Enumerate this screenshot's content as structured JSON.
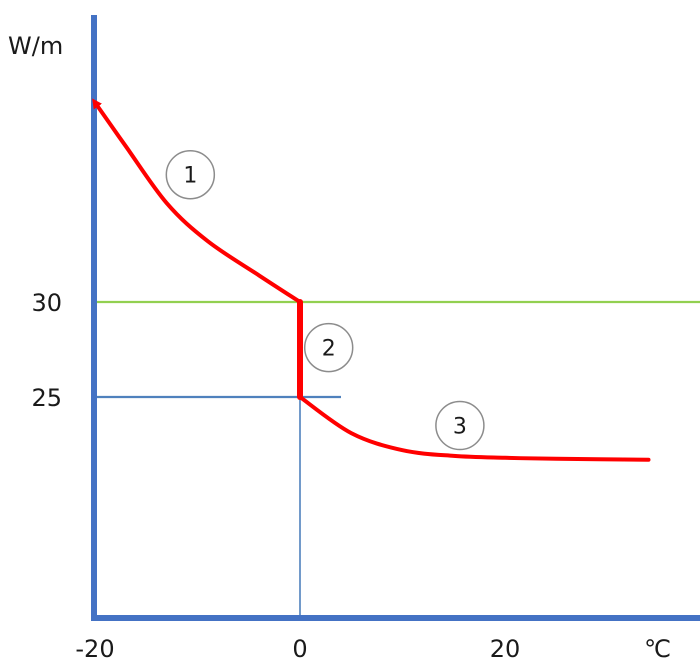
{
  "chart_data": {
    "type": "line",
    "title": "",
    "ylabel": "W/m",
    "xlabel": "℃",
    "xlim": [
      -20,
      30
    ],
    "ylim": [
      15,
      37
    ],
    "x_ticks": [
      {
        "value": -20,
        "label": "-20"
      },
      {
        "value": 0,
        "label": "0"
      },
      {
        "value": 20,
        "label": "20"
      }
    ],
    "y_ticks": [
      {
        "value": 30,
        "label": "30"
      },
      {
        "value": 25,
        "label": "25"
      }
    ],
    "reference_lines": [
      {
        "orientation": "horizontal",
        "y": 30,
        "from_x": -20,
        "to_x": 30,
        "color": "#92d050"
      },
      {
        "orientation": "horizontal",
        "y": 25,
        "from_x": -20,
        "to_x": 4,
        "color": "#4f81bd"
      },
      {
        "orientation": "vertical",
        "x": 0,
        "from_y": 15,
        "to_y": 25,
        "color": "#4f81bd"
      }
    ],
    "series": [
      {
        "color": "#ff0000",
        "segments": [
          {
            "label": "1",
            "label_at": {
              "x": -10.7,
              "y": 36.7
            },
            "points": [
              {
                "x": 0,
                "y": 30
              },
              {
                "x": -4,
                "y": 31.4
              },
              {
                "x": -9,
                "y": 33.2
              },
              {
                "x": -13,
                "y": 35.2
              },
              {
                "x": -17,
                "y": 38.2
              },
              {
                "x": -20,
                "y": 40.5
              }
            ],
            "arrow_end": true
          },
          {
            "label": "2",
            "label_at": {
              "x": 2.8,
              "y": 27.6
            },
            "points": [
              {
                "x": 0,
                "y": 30
              },
              {
                "x": 0,
                "y": 25
              }
            ]
          },
          {
            "label": "3",
            "label_at": {
              "x": 15.6,
              "y": 23.5
            },
            "points": [
              {
                "x": 0,
                "y": 25
              },
              {
                "x": 5,
                "y": 23.1
              },
              {
                "x": 10,
                "y": 22.2
              },
              {
                "x": 15,
                "y": 21.9
              },
              {
                "x": 20,
                "y": 21.8
              },
              {
                "x": 25,
                "y": 21.75
              },
              {
                "x": 34,
                "y": 21.7
              }
            ]
          }
        ]
      }
    ],
    "axis_color": "#4472c4",
    "grid": false,
    "legend": "none"
  }
}
